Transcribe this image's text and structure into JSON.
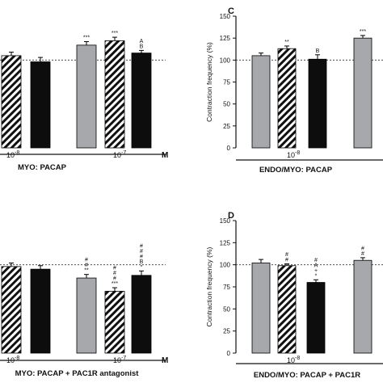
{
  "colors": {
    "gray": "#a7a8ab",
    "black": "#0d0d0d",
    "hatch": "#111111",
    "axis": "#111111"
  },
  "chart_data": [
    {
      "panel_letter": "",
      "type": "bar",
      "fill_pattern": [
        "hatched",
        "black",
        "gray",
        "hatched",
        "black"
      ],
      "values": [
        105,
        98,
        117,
        122,
        108
      ],
      "errors": [
        4,
        5,
        4,
        4,
        3
      ],
      "significance": [
        "",
        "",
        "***",
        "***",
        "A\nB"
      ],
      "dose_labels": [
        "10-8",
        "10-7"
      ],
      "unit_label": "M",
      "xlabel": "MYO: PACAP",
      "ylabel": "",
      "ylim": [
        0,
        150
      ],
      "baseline": 100
    },
    {
      "panel_letter": "C",
      "type": "bar",
      "fill_pattern": [
        "gray",
        "hatched",
        "black",
        "gray"
      ],
      "values": [
        105,
        113,
        101,
        125
      ],
      "errors": [
        3,
        3,
        5,
        3
      ],
      "significance": [
        "",
        "**",
        "B",
        "***"
      ],
      "dose_labels": [
        "10-8"
      ],
      "unit_label": "",
      "xlabel": "ENDO/MYO: PACAP",
      "ylabel": "Contraction frequency (%)",
      "yticks": [
        "0",
        "25",
        "50",
        "75",
        "100",
        "125",
        "150"
      ],
      "ylim": [
        0,
        150
      ],
      "baseline": 100
    },
    {
      "panel_letter": "",
      "type": "bar",
      "fill_pattern": [
        "hatched",
        "black",
        "gray",
        "hatched",
        "black"
      ],
      "values": [
        98,
        95,
        85,
        70,
        88
      ],
      "errors": [
        4,
        4,
        4,
        4,
        5
      ],
      "significance": [
        "",
        "",
        "#\n#\n**",
        "#\n#\n#\n***",
        "#\n#\n#\nB\n*"
      ],
      "dose_labels": [
        "10-8",
        "10-7"
      ],
      "unit_label": "M",
      "xlabel": "MYO: PACAP + PAC1R antagonist",
      "ylabel": "",
      "ylim": [
        0,
        150
      ],
      "baseline": 100
    },
    {
      "panel_letter": "D",
      "type": "bar",
      "fill_pattern": [
        "gray",
        "hatched",
        "black",
        "gray"
      ],
      "values": [
        102,
        99,
        80,
        105
      ],
      "errors": [
        4,
        2,
        3,
        3
      ],
      "significance": [
        "",
        "#\n#",
        "#\nA\n+\n*",
        "#\n#"
      ],
      "dose_labels": [
        "10-8"
      ],
      "unit_label": "",
      "xlabel": "ENDO/MYO: PACAP + PAC1R",
      "ylabel": "Contraction frequency (%)",
      "yticks": [
        "0",
        "25",
        "50",
        "75",
        "100",
        "125",
        "150"
      ],
      "ylim": [
        0,
        150
      ],
      "baseline": 100
    }
  ]
}
